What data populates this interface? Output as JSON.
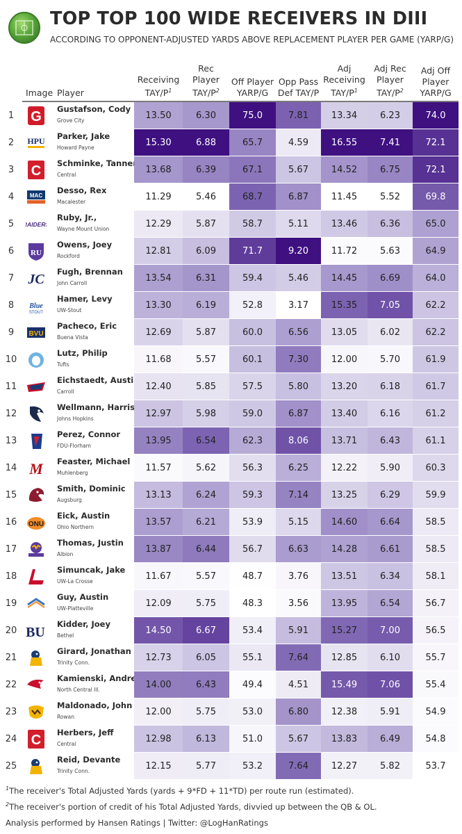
{
  "header": {
    "title": "TOP TOP 100 WIDE RECEIVERS IN DIII",
    "subtitle": "ACCORDING TO OPPONENT-ADJUSTED YARDS ABOVE REPLACEMENT PLAYER PER GAME (YARP/G)"
  },
  "columns": {
    "image": "Image",
    "player": "Player",
    "stats": [
      {
        "lines": [
          "Receiving",
          "TAY/P"
        ],
        "sup": "1"
      },
      {
        "lines": [
          "Rec",
          "Player",
          "TAY/P"
        ],
        "sup": "2"
      },
      {
        "lines": [
          "Off Player",
          "YARP/G"
        ],
        "sup": ""
      },
      {
        "lines": [
          "Opp Pass",
          "Def TAY/P"
        ],
        "sup": ""
      },
      {
        "lines": [
          "Adj",
          "Receiving",
          "TAY/P"
        ],
        "sup": "1"
      },
      {
        "lines": [
          "Adj Rec",
          "Player",
          "TAY/P"
        ],
        "sup": "2"
      },
      {
        "lines": [
          "Adj Off",
          "Player",
          "YARP/G"
        ],
        "sup": ""
      }
    ]
  },
  "colors": {
    "base": "#ffffff",
    "dark": "#3e1080",
    "text_dark": "#ffffff",
    "text_light": "#222222"
  },
  "chart_data": {
    "type": "table",
    "columns": [
      "Receiving TAY/P",
      "Rec Player TAY/P",
      "Off Player YARP/G",
      "Opp Pass Def TAY/P",
      "Adj Receiving TAY/P",
      "Adj Rec Player TAY/P",
      "Adj Off Player YARP/G"
    ],
    "rows": [
      {
        "rank": "1",
        "player": "Gustafson, Cody",
        "school": "Grove City",
        "logo": "grove-city-logo",
        "values": [
          "13.50",
          "6.30",
          "75.0",
          "7.81",
          "13.34",
          "6.23",
          "74.0"
        ]
      },
      {
        "rank": "2",
        "player": "Parker, Jake",
        "school": "Howard Payne",
        "logo": "howard-payne-logo",
        "values": [
          "15.30",
          "6.88",
          "65.7",
          "4.59",
          "16.55",
          "7.41",
          "72.1"
        ]
      },
      {
        "rank": "3",
        "player": "Schminke, Tanner",
        "school": "Central",
        "logo": "central-logo",
        "values": [
          "13.68",
          "6.39",
          "67.1",
          "5.67",
          "14.52",
          "6.75",
          "72.1"
        ]
      },
      {
        "rank": "4",
        "player": "Desso, Rex",
        "school": "Macalester",
        "logo": "macalester-logo",
        "values": [
          "11.29",
          "5.46",
          "68.7",
          "6.87",
          "11.45",
          "5.52",
          "69.8"
        ]
      },
      {
        "rank": "5",
        "player": "Ruby, Jr.,",
        "school": "Wayne Mount Union",
        "logo": "mount-union-logo",
        "values": [
          "12.29",
          "5.87",
          "58.7",
          "5.11",
          "13.46",
          "6.36",
          "65.0"
        ]
      },
      {
        "rank": "6",
        "player": "Owens, Joey",
        "school": "Rockford",
        "logo": "rockford-logo",
        "values": [
          "12.81",
          "6.09",
          "71.7",
          "9.20",
          "11.72",
          "5.63",
          "64.9"
        ]
      },
      {
        "rank": "7",
        "player": "Fugh, Brennan",
        "school": "John Carroll",
        "logo": "john-carroll-logo",
        "values": [
          "13.54",
          "6.31",
          "59.4",
          "5.46",
          "14.45",
          "6.69",
          "64.0"
        ]
      },
      {
        "rank": "8",
        "player": "Hamer, Levy",
        "school": "UW-Stout",
        "logo": "uw-stout-logo",
        "values": [
          "13.30",
          "6.19",
          "52.8",
          "3.17",
          "15.35",
          "7.05",
          "62.2"
        ]
      },
      {
        "rank": "9",
        "player": "Pacheco, Eric",
        "school": "Buena Vista",
        "logo": "buena-vista-logo",
        "values": [
          "12.69",
          "5.87",
          "60.0",
          "6.56",
          "13.05",
          "6.02",
          "62.2"
        ]
      },
      {
        "rank": "10",
        "player": "Lutz, Philip",
        "school": "Tufts",
        "logo": "tufts-logo",
        "values": [
          "11.68",
          "5.57",
          "60.1",
          "7.30",
          "12.00",
          "5.70",
          "61.9"
        ]
      },
      {
        "rank": "11",
        "player": "Eichstaedt, Austin",
        "school": "Carroll",
        "logo": "carroll-logo",
        "values": [
          "12.40",
          "5.85",
          "57.5",
          "5.80",
          "13.20",
          "6.18",
          "61.7"
        ]
      },
      {
        "rank": "12",
        "player": "Wellmann, Harrison",
        "school": "Johns Hopkins",
        "logo": "johns-hopkins-logo",
        "values": [
          "12.97",
          "5.98",
          "59.0",
          "6.87",
          "13.40",
          "6.16",
          "61.2"
        ]
      },
      {
        "rank": "13",
        "player": "Perez, Connor",
        "school": "FDU-Florham",
        "logo": "fdu-florham-logo",
        "values": [
          "13.95",
          "6.54",
          "62.3",
          "8.06",
          "13.71",
          "6.43",
          "61.1"
        ]
      },
      {
        "rank": "14",
        "player": "Feaster, Michael",
        "school": "Muhlenberg",
        "logo": "muhlenberg-logo",
        "values": [
          "11.57",
          "5.62",
          "56.3",
          "6.25",
          "12.22",
          "5.90",
          "60.3"
        ]
      },
      {
        "rank": "15",
        "player": "Smith, Dominic",
        "school": "Augsburg",
        "logo": "augsburg-logo",
        "values": [
          "13.13",
          "6.24",
          "59.3",
          "7.14",
          "13.25",
          "6.29",
          "59.9"
        ]
      },
      {
        "rank": "16",
        "player": "Eick, Austin",
        "school": "Ohio Northern",
        "logo": "ohio-northern-logo",
        "values": [
          "13.57",
          "6.21",
          "53.9",
          "5.15",
          "14.60",
          "6.64",
          "58.5"
        ]
      },
      {
        "rank": "17",
        "player": "Thomas, Justin",
        "school": "Albion",
        "logo": "albion-logo",
        "values": [
          "13.87",
          "6.44",
          "56.7",
          "6.63",
          "14.28",
          "6.61",
          "58.5"
        ]
      },
      {
        "rank": "18",
        "player": "Simuncak, Jake",
        "school": "UW-La Crosse",
        "logo": "uw-la-crosse-logo",
        "values": [
          "11.67",
          "5.57",
          "48.7",
          "3.76",
          "13.51",
          "6.34",
          "58.1"
        ]
      },
      {
        "rank": "19",
        "player": "Guy, Austin",
        "school": "UW-Platteville",
        "logo": "uw-platteville-logo",
        "values": [
          "12.09",
          "5.75",
          "48.3",
          "3.56",
          "13.95",
          "6.54",
          "56.7"
        ]
      },
      {
        "rank": "20",
        "player": "Kidder, Joey",
        "school": "Bethel",
        "logo": "bethel-logo",
        "values": [
          "14.50",
          "6.67",
          "53.4",
          "5.91",
          "15.27",
          "7.00",
          "56.5"
        ]
      },
      {
        "rank": "21",
        "player": "Girard, Jonathan",
        "school": "Trinity Conn.",
        "logo": "trinity-conn-logo",
        "values": [
          "12.73",
          "6.05",
          "55.1",
          "7.64",
          "12.85",
          "6.10",
          "55.7"
        ]
      },
      {
        "rank": "22",
        "player": "Kamienski, Andrew",
        "school": "North Central Ill.",
        "logo": "north-central-logo",
        "values": [
          "14.00",
          "6.43",
          "49.4",
          "4.51",
          "15.49",
          "7.06",
          "55.4"
        ]
      },
      {
        "rank": "23",
        "player": "Maldonado, John",
        "school": "Rowan",
        "logo": "rowan-logo",
        "values": [
          "12.00",
          "5.75",
          "53.0",
          "6.80",
          "12.38",
          "5.91",
          "54.9"
        ]
      },
      {
        "rank": "24",
        "player": "Herbers, Jeff",
        "school": "Central",
        "logo": "central-logo",
        "values": [
          "12.98",
          "6.13",
          "51.0",
          "5.67",
          "13.83",
          "6.49",
          "54.8"
        ]
      },
      {
        "rank": "25",
        "player": "Reid, Devante",
        "school": "Trinity Conn.",
        "logo": "trinity-conn-logo",
        "values": [
          "12.15",
          "5.77",
          "53.2",
          "7.64",
          "12.27",
          "5.82",
          "53.7"
        ]
      }
    ]
  },
  "footnotes": {
    "note1_mark": "1",
    "note1": "The receiver's Total Adjusted Yards (yards + 9*FD + 11*TD) per route run (estimated).",
    "note2_mark": "2",
    "note2": "The receiver's portion of credit of his Total Adjusted Yards, divvied up between the QB & OL.",
    "credit": "Analysis performed by Hansen Ratings | Twitter: @LogHanRatings"
  }
}
